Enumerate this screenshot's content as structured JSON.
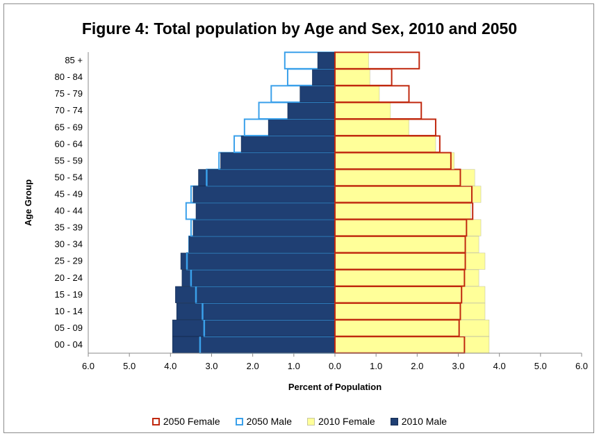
{
  "chart_data": {
    "type": "bar",
    "title": "Figure 4: Total population by Age and Sex, 2010 and 2050",
    "xlabel": "Percent of Population",
    "ylabel": "Age Group",
    "xlim": [
      -6,
      6
    ],
    "x_ticks": [
      "6.0",
      "5.0",
      "4.0",
      "3.0",
      "2.0",
      "1.0",
      "0.0",
      "1.0",
      "2.0",
      "3.0",
      "4.0",
      "5.0",
      "6.0"
    ],
    "categories": [
      "00 - 04",
      "05 - 09",
      "10 - 14",
      "15 - 19",
      "20 - 24",
      "25 - 29",
      "30 - 34",
      "35 - 39",
      "40 - 44",
      "45 - 49",
      "50 - 54",
      "55 - 59",
      "60 - 64",
      "65 - 69",
      "70 - 74",
      "75 - 79",
      "80 - 84",
      "85 +"
    ],
    "series": [
      {
        "name": "2050 Female",
        "values": [
          3.15,
          3.02,
          3.05,
          3.08,
          3.15,
          3.17,
          3.17,
          3.2,
          3.35,
          3.33,
          3.05,
          2.82,
          2.55,
          2.45,
          2.1,
          1.8,
          1.38,
          2.05
        ]
      },
      {
        "name": "2050 Male",
        "values": [
          3.28,
          3.18,
          3.22,
          3.38,
          3.5,
          3.6,
          3.55,
          3.5,
          3.62,
          3.5,
          3.12,
          2.82,
          2.45,
          2.2,
          1.85,
          1.55,
          1.15,
          1.22
        ]
      },
      {
        "name": "2010 Female",
        "values": [
          3.75,
          3.75,
          3.65,
          3.65,
          3.5,
          3.65,
          3.5,
          3.55,
          3.3,
          3.55,
          3.4,
          2.9,
          2.45,
          1.8,
          1.35,
          1.08,
          0.85,
          0.82
        ]
      },
      {
        "name": "2010 Male",
        "values": [
          3.95,
          3.95,
          3.85,
          3.88,
          3.72,
          3.75,
          3.55,
          3.45,
          3.38,
          3.45,
          3.32,
          2.78,
          2.28,
          1.62,
          1.15,
          0.85,
          0.55,
          0.42
        ]
      }
    ],
    "colors": {
      "2050 Female": "#c0280f",
      "2050 Male": "#3aa0ea",
      "2010 Female": "#ffff99",
      "2010 Male": "#1f3f73"
    },
    "grid": false,
    "legend_position": "bottom"
  }
}
